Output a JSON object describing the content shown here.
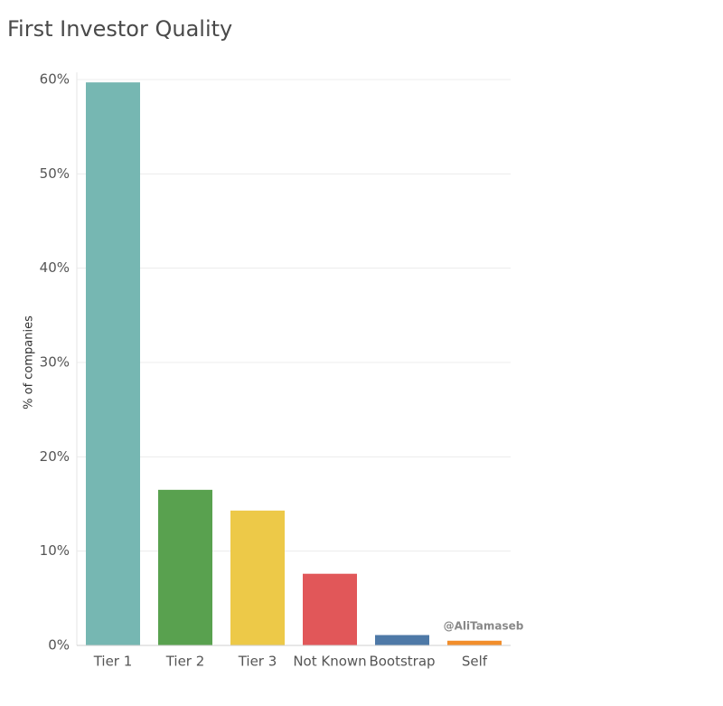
{
  "chart_data": {
    "type": "bar",
    "title": "First Investor Quality",
    "y_label": "% of companies",
    "categories": [
      "Tier 1",
      "Tier 2",
      "Tier 3",
      "Not Known",
      "Bootstrap",
      "Self"
    ],
    "values": [
      59.7,
      16.5,
      14.3,
      7.6,
      1.1,
      0.5
    ],
    "colors": [
      "#76b7b2",
      "#59a14f",
      "#edc948",
      "#e15759",
      "#4e79a7",
      "#f28e2b"
    ],
    "ylim": [
      0,
      60
    ],
    "yticks": [
      {
        "value": 0,
        "label": "0%"
      },
      {
        "value": 10,
        "label": "10%"
      },
      {
        "value": 20,
        "label": "20%"
      },
      {
        "value": 30,
        "label": "30%"
      },
      {
        "value": 40,
        "label": "40%"
      },
      {
        "value": 50,
        "label": "50%"
      },
      {
        "value": 60,
        "label": "60%"
      }
    ],
    "grid": true,
    "annotation": "@AliTamaseb"
  }
}
